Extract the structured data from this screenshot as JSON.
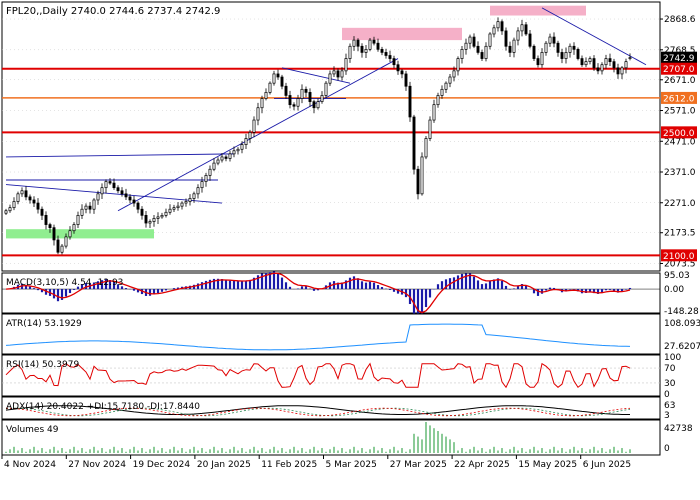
{
  "colors": {
    "up": "#000000",
    "down": "#000000",
    "red_line": "#e00000",
    "orange_line": "#f07020",
    "trend_blue": "#1a1aa8",
    "zone_pink": "#f5b0c8",
    "zone_green": "#90ee90",
    "macd_hist": "#1a1aa8",
    "macd_signal": "#e00000",
    "atr": "#1e90ff",
    "rsi": "#e00000",
    "adx": "#000000",
    "di_plus": "#2e8b57",
    "di_minus": "#e00000",
    "volume": "#2ea043",
    "grid": "#c8c8c8"
  },
  "header": {
    "main": "FPL20,,Daily  2740.0  2744.6  2737.4  2742.9",
    "macd": "MACD(3,10,5) 4.54 -12.93",
    "atr": "ATR(14) 53.1929",
    "rsi": "RSI(14) 50.3979",
    "adx": "ADX(14) 20.4022 +DI:15.7180 -DI:17.8440",
    "volume": "Volumes 49"
  },
  "chart_data": {
    "type": "candlestick",
    "symbol": "FPL20",
    "timeframe": "Daily",
    "ohlc_last": {
      "open": 2740.0,
      "high": 2744.6,
      "low": 2737.4,
      "close": 2742.9
    },
    "price_axis_ticks": [
      "2868.6",
      "2768.5",
      "2671.0",
      "2571.0",
      "2471.0",
      "2371.0",
      "2271.0",
      "2173.5",
      "2073.5"
    ],
    "price_range": [
      2049,
      2924
    ],
    "level_labels": [
      {
        "value": 2742.9,
        "text": "2742.9",
        "kind": "last"
      },
      {
        "value": 2707.0,
        "text": "2707.0",
        "kind": "red"
      },
      {
        "value": 2612.0,
        "text": "2612.0",
        "kind": "orange"
      },
      {
        "value": 2500.0,
        "text": "2500.0",
        "kind": "red"
      },
      {
        "value": 2100.0,
        "text": "2100.0",
        "kind": "red"
      }
    ],
    "horizontal_levels": [
      {
        "value": 2707.0,
        "kind": "red"
      },
      {
        "value": 2612.0,
        "kind": "orange"
      },
      {
        "value": 2500.0,
        "kind": "red"
      },
      {
        "value": 2100.0,
        "kind": "red"
      }
    ],
    "x_labels": [
      "4 Nov 2024",
      "27 Nov 2024",
      "19 Dec 2024",
      "20 Jan 2025",
      "11 Feb 2025",
      "5 Mar 2025",
      "27 Mar 2025",
      "22 Apr 2025",
      "15 May 2025",
      "6 Jun 2025"
    ],
    "close_path": [
      2245,
      2255,
      2275,
      2300,
      2310,
      2290,
      2280,
      2270,
      2250,
      2230,
      2200,
      2190,
      2150,
      2110,
      2130,
      2160,
      2180,
      2200,
      2230,
      2250,
      2260,
      2250,
      2280,
      2300,
      2320,
      2340,
      2335,
      2320,
      2310,
      2300,
      2290,
      2280,
      2270,
      2250,
      2230,
      2205,
      2210,
      2220,
      2225,
      2230,
      2240,
      2250,
      2255,
      2260,
      2270,
      2275,
      2285,
      2300,
      2320,
      2340,
      2360,
      2380,
      2400,
      2410,
      2420,
      2415,
      2430,
      2440,
      2445,
      2460,
      2480,
      2500,
      2540,
      2580,
      2610,
      2630,
      2660,
      2690,
      2680,
      2650,
      2620,
      2590,
      2585,
      2610,
      2640,
      2630,
      2600,
      2580,
      2600,
      2620,
      2660,
      2690,
      2700,
      2680,
      2700,
      2740,
      2780,
      2800,
      2780,
      2760,
      2770,
      2800,
      2790,
      2770,
      2760,
      2750,
      2740,
      2720,
      2700,
      2690,
      2650,
      2550,
      2380,
      2300,
      2420,
      2480,
      2540,
      2590,
      2620,
      2640,
      2660,
      2680,
      2700,
      2740,
      2770,
      2790,
      2810,
      2780,
      2760,
      2740,
      2780,
      2820,
      2840,
      2860,
      2830,
      2780,
      2760,
      2800,
      2830,
      2850,
      2820,
      2780,
      2740,
      2720,
      2760,
      2790,
      2810,
      2790,
      2760,
      2740,
      2760,
      2780,
      2770,
      2740,
      2720,
      2730,
      2740,
      2710,
      2700,
      2720,
      2740,
      2730,
      2710,
      2690,
      2710,
      2730,
      2742.9
    ],
    "macd": {
      "value": 4.54,
      "signal": -12.93,
      "axis_ticks": [
        "95.03",
        "0.00",
        "-148.28"
      ]
    },
    "atr": {
      "value": 53.1929,
      "axis_ticks": [
        "108.0936",
        "27.6207"
      ]
    },
    "rsi": {
      "value": 50.3979,
      "axis_ticks": [
        "100",
        "70",
        "30",
        "0"
      ]
    },
    "adx": {
      "adx": 20.4022,
      "di_plus": 15.718,
      "di_minus": 17.844,
      "axis_ticks": [
        "63",
        "3"
      ]
    },
    "volume": {
      "value": 49,
      "axis_ticks": [
        "42738",
        "0"
      ]
    }
  }
}
